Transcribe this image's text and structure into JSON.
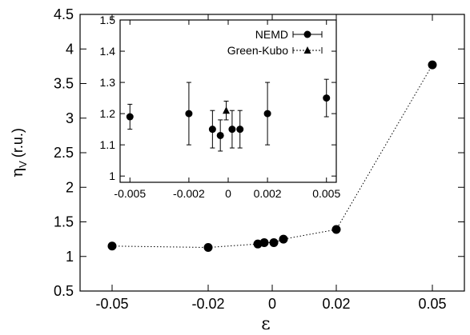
{
  "chart_data": [
    {
      "type": "scatter",
      "title": "",
      "xlabel": "ε",
      "ylabel_main": "η",
      "ylabel_sub": "V",
      "ylabel_unit": "(r.u.)",
      "xlim": [
        -0.06,
        0.06
      ],
      "ylim": [
        0.5,
        4.5
      ],
      "x_ticks": [
        {
          "pos": -0.05,
          "label": "-0.05"
        },
        {
          "pos": -0.02,
          "label": "-0.02"
        },
        {
          "pos": 0,
          "label": "0"
        },
        {
          "pos": 0.02,
          "label": "0.02"
        },
        {
          "pos": 0.05,
          "label": "0.05"
        }
      ],
      "y_ticks": [
        {
          "pos": 0.5,
          "label": "0.5"
        },
        {
          "pos": 1,
          "label": "1"
        },
        {
          "pos": 1.5,
          "label": "1.5"
        },
        {
          "pos": 2,
          "label": "2"
        },
        {
          "pos": 2.5,
          "label": "2.5"
        },
        {
          "pos": 3,
          "label": "3"
        },
        {
          "pos": 3.5,
          "label": "3.5"
        },
        {
          "pos": 4,
          "label": "4"
        },
        {
          "pos": 4.5,
          "label": "4.5"
        }
      ],
      "series": [
        {
          "x": [
            -0.05,
            -0.02,
            -0.005,
            -0.002,
            0.002,
            0.005,
            0.02,
            0.05
          ],
          "y": [
            1.15,
            1.13,
            1.18,
            1.2,
            1.2,
            1.25,
            1.39,
            3.77
          ],
          "x_pos": [
            -0.05,
            -0.02,
            -0.0045,
            -0.0025,
            0.0005,
            0.0035,
            0.02,
            0.05
          ],
          "line": "dotted",
          "marker": "circle"
        }
      ]
    },
    {
      "type": "scatter",
      "title": "",
      "xlim": [
        -0.0055,
        0.0055
      ],
      "ylim": [
        0.98,
        1.5
      ],
      "x_ticks": [
        {
          "pos": -0.005,
          "label": "-0.005"
        },
        {
          "pos": -0.002,
          "label": "-0.002"
        },
        {
          "pos": 0,
          "label": "0"
        },
        {
          "pos": 0.002,
          "label": "0.002"
        },
        {
          "pos": 0.005,
          "label": "0.005"
        }
      ],
      "y_ticks": [
        {
          "pos": 1,
          "label": "1"
        },
        {
          "pos": 1.1,
          "label": "1.1"
        },
        {
          "pos": 1.2,
          "label": "1.2"
        },
        {
          "pos": 1.3,
          "label": "1.3"
        },
        {
          "pos": 1.4,
          "label": "1.4"
        },
        {
          "pos": 1.5,
          "label": "1.5"
        }
      ],
      "series": [
        {
          "name": "NEMD",
          "marker": "circle",
          "points": [
            {
              "x": -0.005,
              "y": 1.19,
              "err": 0.04
            },
            {
              "x": -0.002,
              "y": 1.2,
              "err": 0.1
            },
            {
              "x": -0.0008,
              "y": 1.15,
              "err": 0.06
            },
            {
              "x": -0.0004,
              "y": 1.13,
              "err": 0.05
            },
            {
              "x": 0.0002,
              "y": 1.15,
              "err": 0.06
            },
            {
              "x": 0.0006,
              "y": 1.15,
              "err": 0.06
            },
            {
              "x": 0.002,
              "y": 1.2,
              "err": 0.1
            },
            {
              "x": 0.005,
              "y": 1.25,
              "err": 0.06
            }
          ]
        },
        {
          "name": "Green-Kubo",
          "marker": "triangle",
          "points": [
            {
              "x": -0.0001,
              "y": 1.21,
              "err": 0.03
            }
          ]
        }
      ]
    }
  ]
}
